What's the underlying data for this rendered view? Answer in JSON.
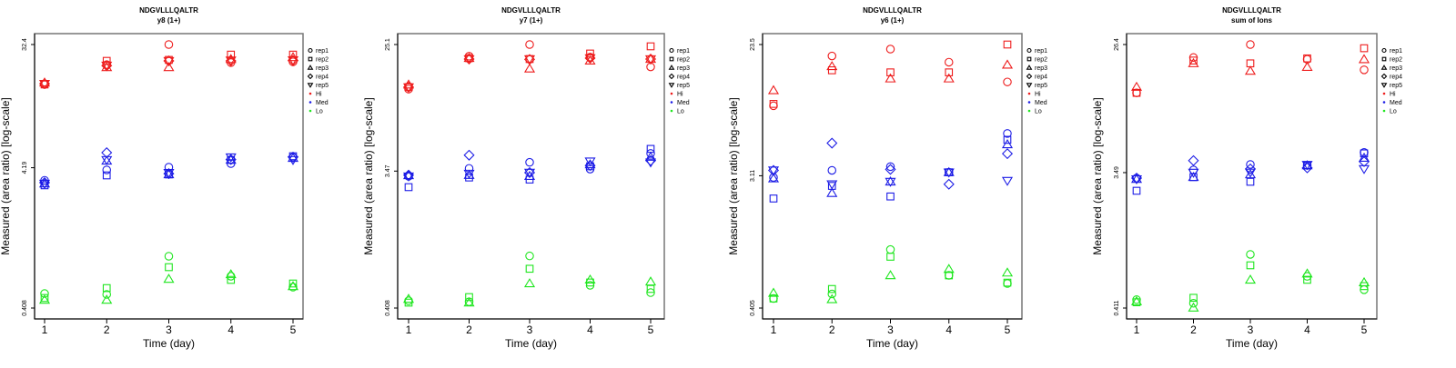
{
  "legend": {
    "shapes": [
      {
        "label": "rep1",
        "shape": "circle"
      },
      {
        "label": "rep2",
        "shape": "square"
      },
      {
        "label": "rep3",
        "shape": "triangle-up"
      },
      {
        "label": "rep4",
        "shape": "diamond"
      },
      {
        "label": "rep5",
        "shape": "triangle-down"
      }
    ],
    "groups": [
      {
        "label": "Hi",
        "color": "#ee1c1c"
      },
      {
        "label": "Med",
        "color": "#1c1ce6"
      },
      {
        "label": "Lo",
        "color": "#1ee61e"
      }
    ]
  },
  "chart_data": [
    {
      "type": "scatter",
      "title": "NDGVLLLQALTR",
      "subtitle": "y8 (1+)",
      "xlabel": "Time (day)",
      "ylabel": "Measured (area ratio) [log-scale]",
      "yscale": "log",
      "x_ticks": [
        "1",
        "2",
        "3",
        "4",
        "5"
      ],
      "y_ticks": [
        {
          "value": 32.4,
          "label": "32.4"
        },
        {
          "value": 4.19,
          "label": "4.19"
        },
        {
          "value": 0.408,
          "label": "0.408"
        }
      ],
      "ylim": [
        0.408,
        32.4
      ],
      "legend_position": "right",
      "series": [
        {
          "group": "Hi",
          "rep": "rep1",
          "x": [
            1,
            2,
            3,
            4,
            5
          ],
          "y": [
            16.7,
            23.2,
            32.4,
            24.0,
            24.3
          ]
        },
        {
          "group": "Hi",
          "rep": "rep2",
          "x": [
            1,
            2,
            3,
            4,
            5
          ],
          "y": [
            16.7,
            24.7,
            25.1,
            27.4,
            27.4
          ]
        },
        {
          "group": "Hi",
          "rep": "rep3",
          "x": [
            1,
            2,
            3,
            4,
            5
          ],
          "y": [
            17.2,
            22.2,
            22.2,
            25.4,
            26.2
          ]
        },
        {
          "group": "Hi",
          "rep": "rep4",
          "x": [
            1,
            2,
            3,
            4,
            5
          ],
          "y": [
            16.9,
            22.8,
            24.7,
            24.7,
            24.9
          ]
        },
        {
          "group": "Hi",
          "rep": "rep5",
          "x": [
            1,
            2,
            3,
            4,
            5
          ],
          "y": [
            16.9,
            22.9,
            24.7,
            24.9,
            25.0
          ]
        },
        {
          "group": "Med",
          "rep": "rep1",
          "x": [
            1,
            2,
            3,
            4,
            5
          ],
          "y": [
            3.4,
            4.04,
            4.23,
            4.49,
            4.99
          ]
        },
        {
          "group": "Med",
          "rep": "rep2",
          "x": [
            1,
            2,
            3,
            4,
            5
          ],
          "y": [
            3.13,
            3.69,
            3.75,
            4.77,
            5.07
          ]
        },
        {
          "group": "Med",
          "rep": "rep3",
          "x": [
            1,
            2,
            3,
            4,
            5
          ],
          "y": [
            3.22,
            4.7,
            3.75,
            4.77,
            4.92
          ]
        },
        {
          "group": "Med",
          "rep": "rep4",
          "x": [
            1,
            2,
            3,
            4,
            5
          ],
          "y": [
            3.27,
            5.38,
            3.8,
            4.8,
            5.0
          ]
        },
        {
          "group": "Med",
          "rep": "rep5",
          "x": [
            1,
            2,
            3,
            4,
            5
          ],
          "y": [
            3.22,
            4.77,
            3.85,
            4.99,
            4.77
          ]
        },
        {
          "group": "Lo",
          "rep": "rep1",
          "x": [
            1,
            2,
            3,
            4,
            5
          ],
          "y": [
            0.519,
            0.512,
            0.964,
            0.692,
            0.577
          ]
        },
        {
          "group": "Lo",
          "rep": "rep2",
          "x": [
            1,
            2,
            3,
            4,
            5
          ],
          "y": [
            0.482,
            0.568,
            0.804,
            0.651,
            0.613
          ]
        },
        {
          "group": "Lo",
          "rep": "rep3",
          "x": [
            1,
            2,
            3,
            4,
            5
          ],
          "y": [
            0.467,
            0.467,
            0.661,
            0.713,
            0.585
          ]
        }
      ]
    },
    {
      "type": "scatter",
      "title": "NDGVLLLQALTR",
      "subtitle": "y7 (1+)",
      "xlabel": "Time (day)",
      "ylabel": "Measured (area ratio) [log-scale]",
      "yscale": "log",
      "x_ticks": [
        "1",
        "2",
        "3",
        "4",
        "5"
      ],
      "y_ticks": [
        {
          "value": 25.1,
          "label": "25.1"
        },
        {
          "value": 3.47,
          "label": "3.47"
        },
        {
          "value": 0.408,
          "label": "0.408"
        }
      ],
      "ylim": [
        0.408,
        25.1
      ],
      "legend_position": "right",
      "series": [
        {
          "group": "Hi",
          "rep": "rep1",
          "x": [
            1,
            2,
            3,
            4,
            5
          ],
          "y": [
            12.5,
            20.9,
            25.1,
            20.6,
            17.7
          ]
        },
        {
          "group": "Hi",
          "rep": "rep2",
          "x": [
            1,
            2,
            3,
            4,
            5
          ],
          "y": [
            12.9,
            20.3,
            20.0,
            21.8,
            24.4
          ]
        },
        {
          "group": "Hi",
          "rep": "rep3",
          "x": [
            1,
            2,
            3,
            4,
            5
          ],
          "y": [
            13.4,
            20.3,
            17.2,
            19.5,
            20.0
          ]
        },
        {
          "group": "Hi",
          "rep": "rep4",
          "x": [
            1,
            2,
            3,
            4,
            5
          ],
          "y": [
            12.9,
            20.0,
            19.9,
            20.3,
            20.0
          ]
        },
        {
          "group": "Hi",
          "rep": "rep5",
          "x": [
            1,
            2,
            3,
            4,
            5
          ],
          "y": [
            12.9,
            20.0,
            20.0,
            20.3,
            20.0
          ]
        },
        {
          "group": "Med",
          "rep": "rep1",
          "x": [
            1,
            2,
            3,
            4,
            5
          ],
          "y": [
            3.2,
            3.62,
            3.98,
            3.58,
            4.57
          ]
        },
        {
          "group": "Med",
          "rep": "rep2",
          "x": [
            1,
            2,
            3,
            4,
            5
          ],
          "y": [
            2.7,
            3.14,
            3.04,
            3.74,
            4.91
          ]
        },
        {
          "group": "Med",
          "rep": "rep3",
          "x": [
            1,
            2,
            3,
            4,
            5
          ],
          "y": [
            3.25,
            3.26,
            3.21,
            3.85,
            4.33
          ]
        },
        {
          "group": "Med",
          "rep": "rep4",
          "x": [
            1,
            2,
            3,
            4,
            5
          ],
          "y": [
            3.26,
            4.45,
            3.39,
            3.79,
            4.09
          ]
        },
        {
          "group": "Med",
          "rep": "rep5",
          "x": [
            1,
            2,
            3,
            4,
            5
          ],
          "y": [
            3.2,
            3.34,
            3.39,
            4.04,
            3.98
          ]
        },
        {
          "group": "Lo",
          "rep": "rep1",
          "x": [
            1,
            2,
            3,
            4,
            5
          ],
          "y": [
            0.457,
            0.45,
            0.921,
            0.582,
            0.519
          ]
        },
        {
          "group": "Lo",
          "rep": "rep2",
          "x": [
            1,
            2,
            3,
            4,
            5
          ],
          "y": [
            0.444,
            0.484,
            0.754,
            0.608,
            0.55
          ]
        },
        {
          "group": "Lo",
          "rep": "rep3",
          "x": [
            1,
            2,
            3,
            4,
            5
          ],
          "y": [
            0.47,
            0.444,
            0.599,
            0.635,
            0.616
          ]
        }
      ]
    },
    {
      "type": "scatter",
      "title": "NDGVLLLQALTR",
      "subtitle": "y6 (1+)",
      "xlabel": "Time (day)",
      "ylabel": "Measured (area ratio) [log-scale]",
      "yscale": "log",
      "x_ticks": [
        "1",
        "2",
        "3",
        "4",
        "5"
      ],
      "y_ticks": [
        {
          "value": 23.5,
          "label": "23.5"
        },
        {
          "value": 3.11,
          "label": "3.11"
        },
        {
          "value": 0.405,
          "label": "0.405"
        }
      ],
      "ylim": [
        0.405,
        23.5
      ],
      "legend_position": "right",
      "series": [
        {
          "group": "Hi",
          "rep": "rep1",
          "x": [
            1,
            2,
            3,
            4,
            5
          ],
          "y": [
            9.15,
            19.7,
            21.9,
            17.9,
            13.2
          ]
        },
        {
          "group": "Hi",
          "rep": "rep2",
          "x": [
            1,
            2,
            3,
            4,
            5
          ],
          "y": [
            9.41,
            15.8,
            15.3,
            15.3,
            23.5
          ]
        },
        {
          "group": "Hi",
          "rep": "rep3",
          "x": [
            1,
            2,
            3,
            4,
            5
          ],
          "y": [
            11.6,
            16.8,
            13.9,
            13.9,
            17.2
          ]
        },
        {
          "group": "Med",
          "rep": "rep1",
          "x": [
            1,
            2,
            3,
            4,
            5
          ],
          "y": [
            3.03,
            3.38,
            3.58,
            3.28,
            5.97
          ]
        },
        {
          "group": "Med",
          "rep": "rep2",
          "x": [
            1,
            2,
            3,
            4,
            5
          ],
          "y": [
            2.19,
            2.66,
            2.26,
            3.28,
            5.41
          ]
        },
        {
          "group": "Med",
          "rep": "rep3",
          "x": [
            1,
            2,
            3,
            4,
            5
          ],
          "y": [
            2.98,
            2.38,
            2.84,
            3.28,
            5.04
          ]
        },
        {
          "group": "Med",
          "rep": "rep4",
          "x": [
            1,
            2,
            3,
            4,
            5
          ],
          "y": [
            3.38,
            5.14,
            3.43,
            2.73,
            4.37
          ]
        },
        {
          "group": "Med",
          "rep": "rep5",
          "x": [
            1,
            2,
            3,
            4,
            5
          ],
          "y": [
            3.38,
            2.73,
            2.84,
            3.28,
            2.88
          ]
        },
        {
          "group": "Lo",
          "rep": "rep1",
          "x": [
            1,
            2,
            3,
            4,
            5
          ],
          "y": [
            0.469,
            0.503,
            0.997,
            0.67,
            0.591
          ]
        },
        {
          "group": "Lo",
          "rep": "rep2",
          "x": [
            1,
            2,
            3,
            4,
            5
          ],
          "y": [
            0.469,
            0.543,
            0.893,
            0.67,
            0.599
          ]
        },
        {
          "group": "Lo",
          "rep": "rep3",
          "x": [
            1,
            2,
            3,
            4,
            5
          ],
          "y": [
            0.511,
            0.463,
            0.67,
            0.738,
            0.698
          ]
        }
      ]
    },
    {
      "type": "scatter",
      "title": "NDGVLLLQALTR",
      "subtitle": "sum of Ions",
      "xlabel": "Time (day)",
      "ylabel": "Measured (area ratio) [log-scale]",
      "yscale": "log",
      "x_ticks": [
        "1",
        "2",
        "3",
        "4",
        "5"
      ],
      "y_ticks": [
        {
          "value": 26.4,
          "label": "26.4"
        },
        {
          "value": 3.49,
          "label": "3.49"
        },
        {
          "value": 0.411,
          "label": "0.411"
        }
      ],
      "ylim": [
        0.411,
        26.4
      ],
      "legend_position": "right",
      "series": [
        {
          "group": "Hi",
          "rep": "rep1",
          "x": [
            1,
            2,
            3,
            4,
            5
          ],
          "y": [
            12.3,
            21.5,
            26.4,
            20.9,
            17.7
          ]
        },
        {
          "group": "Hi",
          "rep": "rep2",
          "x": [
            1,
            2,
            3,
            4,
            5
          ],
          "y": [
            12.3,
            20.5,
            19.6,
            21.2,
            24.9
          ]
        },
        {
          "group": "Hi",
          "rep": "rep3",
          "x": [
            1,
            2,
            3,
            4,
            5
          ],
          "y": [
            13.5,
            19.6,
            17.4,
            18.5,
            20.9
          ]
        },
        {
          "group": "Med",
          "rep": "rep1",
          "x": [
            1,
            2,
            3,
            4,
            5
          ],
          "y": [
            3.2,
            3.64,
            3.97,
            3.91,
            4.8
          ]
        },
        {
          "group": "Med",
          "rep": "rep2",
          "x": [
            1,
            2,
            3,
            4,
            5
          ],
          "y": [
            2.62,
            3.25,
            3.02,
            3.91,
            4.73
          ]
        },
        {
          "group": "Med",
          "rep": "rep3",
          "x": [
            1,
            2,
            3,
            4,
            5
          ],
          "y": [
            3.15,
            3.25,
            3.39,
            3.91,
            4.4
          ]
        },
        {
          "group": "Med",
          "rep": "rep4",
          "x": [
            1,
            2,
            3,
            4,
            5
          ],
          "y": [
            3.2,
            4.22,
            3.7,
            3.76,
            4.15
          ]
        },
        {
          "group": "Med",
          "rep": "rep5",
          "x": [
            1,
            2,
            3,
            4,
            5
          ],
          "y": [
            3.15,
            3.49,
            3.5,
            3.95,
            3.7
          ]
        },
        {
          "group": "Lo",
          "rep": "rep1",
          "x": [
            1,
            2,
            3,
            4,
            5
          ],
          "y": [
            0.469,
            0.443,
            0.959,
            0.678,
            0.549
          ]
        },
        {
          "group": "Lo",
          "rep": "rep2",
          "x": [
            1,
            2,
            3,
            4,
            5
          ],
          "y": [
            0.45,
            0.483,
            0.807,
            0.642,
            0.581
          ]
        },
        {
          "group": "Lo",
          "rep": "rep3",
          "x": [
            1,
            2,
            3,
            4,
            5
          ],
          "y": [
            0.456,
            0.413,
            0.642,
            0.707,
            0.616
          ]
        }
      ]
    }
  ]
}
